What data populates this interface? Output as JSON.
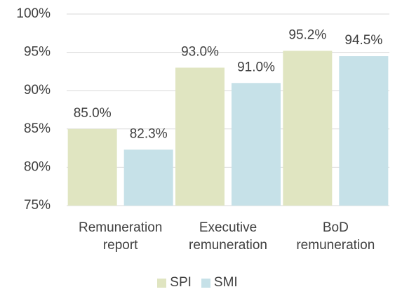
{
  "chart_data": {
    "type": "bar",
    "categories": [
      "Remuneration report",
      "Executive remuneration",
      "BoD remuneration"
    ],
    "series": [
      {
        "name": "SPI",
        "color": "#e0e5c1",
        "values": [
          85.0,
          93.0,
          95.2
        ],
        "value_labels": [
          "85.0%",
          "93.0%",
          "95.2%"
        ]
      },
      {
        "name": "SMI",
        "color": "#c6e1e8",
        "values": [
          82.3,
          91.0,
          94.5
        ],
        "value_labels": [
          "82.3%",
          "91.0%",
          "94.5%"
        ]
      }
    ],
    "ylim": [
      75,
      100
    ],
    "yticks": [
      {
        "value": 75,
        "label": "75%"
      },
      {
        "value": 80,
        "label": "80%"
      },
      {
        "value": 85,
        "label": "85%"
      },
      {
        "value": 90,
        "label": "90%"
      },
      {
        "value": 95,
        "label": "95%"
      },
      {
        "value": 100,
        "label": "100%"
      }
    ],
    "grid": true,
    "legend": "bottom"
  }
}
